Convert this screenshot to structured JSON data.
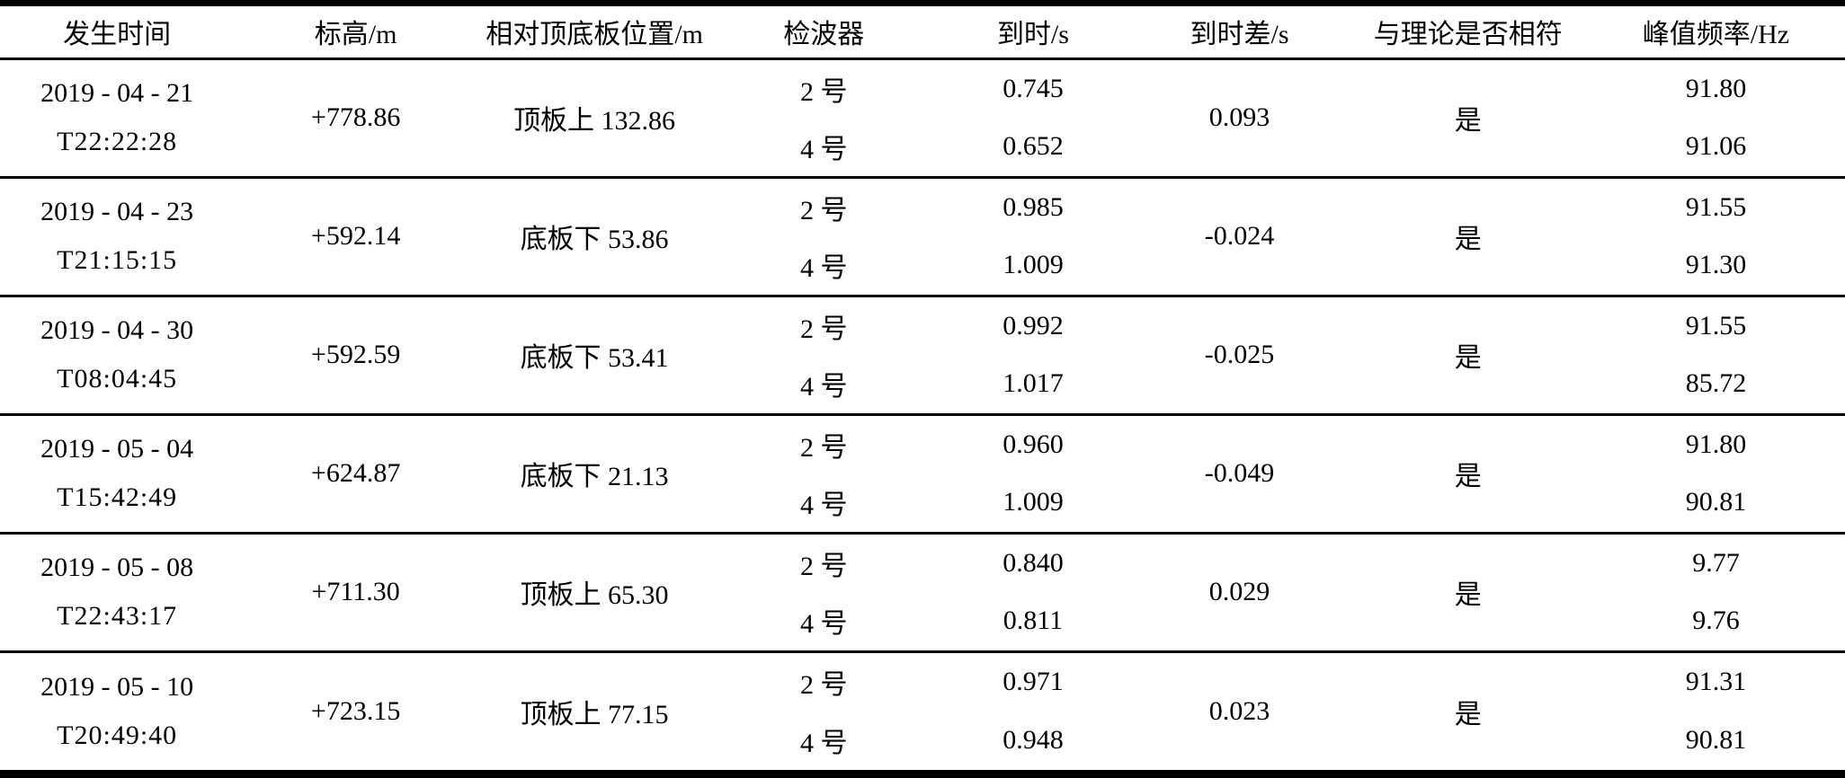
{
  "table": {
    "columns": [
      "发生时间",
      "标高/m",
      "相对顶底板位置/m",
      "检波器",
      "到时/s",
      "到时差/s",
      "与理论是否相符",
      "峰值频率/Hz"
    ],
    "rows": [
      {
        "date": "2019 - 04 - 21",
        "time": "T22:22:28",
        "elevation": "+778.86",
        "position": "顶板上 132.86",
        "detectors": [
          {
            "name": "2 号",
            "arrival_s": "0.745",
            "peak_freq_hz": "91.80"
          },
          {
            "name": "4 号",
            "arrival_s": "0.652",
            "peak_freq_hz": "91.06"
          }
        ],
        "arrival_diff_s": "0.093",
        "matches_theory": "是"
      },
      {
        "date": "2019 - 04 - 23",
        "time": "T21:15:15",
        "elevation": "+592.14",
        "position": "底板下 53.86",
        "detectors": [
          {
            "name": "2 号",
            "arrival_s": "0.985",
            "peak_freq_hz": "91.55"
          },
          {
            "name": "4 号",
            "arrival_s": "1.009",
            "peak_freq_hz": "91.30"
          }
        ],
        "arrival_diff_s": "-0.024",
        "matches_theory": "是"
      },
      {
        "date": "2019 - 04 - 30",
        "time": "T08:04:45",
        "elevation": "+592.59",
        "position": "底板下 53.41",
        "detectors": [
          {
            "name": "2 号",
            "arrival_s": "0.992",
            "peak_freq_hz": "91.55"
          },
          {
            "name": "4 号",
            "arrival_s": "1.017",
            "peak_freq_hz": "85.72"
          }
        ],
        "arrival_diff_s": "-0.025",
        "matches_theory": "是"
      },
      {
        "date": "2019 - 05 - 04",
        "time": "T15:42:49",
        "elevation": "+624.87",
        "position": "底板下 21.13",
        "detectors": [
          {
            "name": "2 号",
            "arrival_s": "0.960",
            "peak_freq_hz": "91.80"
          },
          {
            "name": "4 号",
            "arrival_s": "1.009",
            "peak_freq_hz": "90.81"
          }
        ],
        "arrival_diff_s": "-0.049",
        "matches_theory": "是"
      },
      {
        "date": "2019 - 05 - 08",
        "time": "T22:43:17",
        "elevation": "+711.30",
        "position": "顶板上 65.30",
        "detectors": [
          {
            "name": "2 号",
            "arrival_s": "0.840",
            "peak_freq_hz": "9.77"
          },
          {
            "name": "4 号",
            "arrival_s": "0.811",
            "peak_freq_hz": "9.76"
          }
        ],
        "arrival_diff_s": "0.029",
        "matches_theory": "是"
      },
      {
        "date": "2019 - 05 - 10",
        "time": "T20:49:40",
        "elevation": "+723.15",
        "position": "顶板上 77.15",
        "detectors": [
          {
            "name": "2 号",
            "arrival_s": "0.971",
            "peak_freq_hz": "91.31"
          },
          {
            "name": "4 号",
            "arrival_s": "0.948",
            "peak_freq_hz": "90.81"
          }
        ],
        "arrival_diff_s": "0.023",
        "matches_theory": "是"
      }
    ]
  }
}
